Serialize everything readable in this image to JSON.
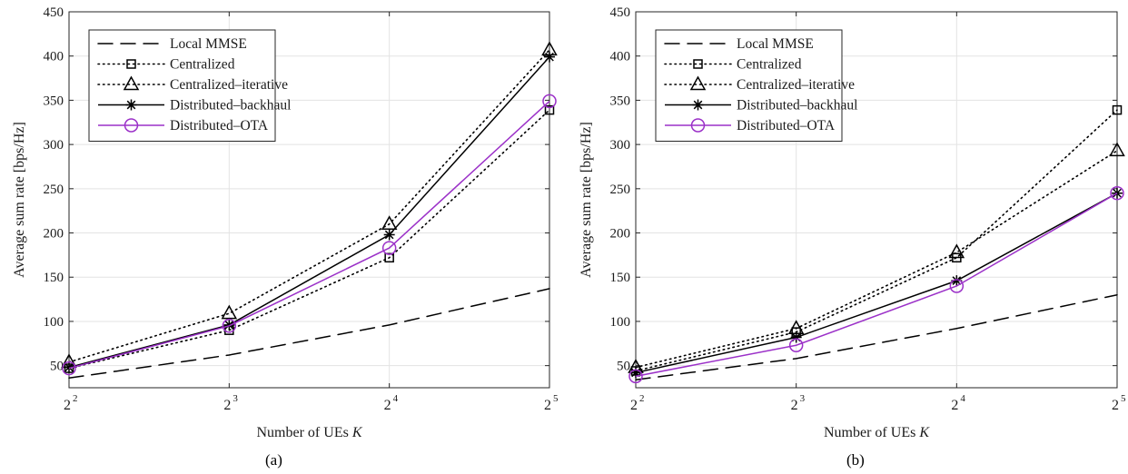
{
  "chart_data": [
    {
      "type": "line",
      "panel_label": "(a)",
      "xlabel": "Number of UEs K",
      "ylabel": "Average sum rate [bps/Hz]",
      "x_scale": "log2",
      "x": [
        4,
        8,
        16,
        32
      ],
      "x_tick_labels": [
        {
          "base": "2",
          "exp": "2"
        },
        {
          "base": "2",
          "exp": "3"
        },
        {
          "base": "2",
          "exp": "4"
        },
        {
          "base": "2",
          "exp": "5"
        }
      ],
      "ylim": [
        25,
        450
      ],
      "yticks": [
        50,
        100,
        150,
        200,
        250,
        300,
        350,
        400,
        450
      ],
      "grid": true,
      "legend_position": "top-left",
      "series": [
        {
          "name": "Local MMSE",
          "color": "#000000",
          "style": "dashed",
          "marker": "none",
          "values": [
            36,
            62,
            96,
            137
          ]
        },
        {
          "name": "Centralized",
          "color": "#000000",
          "style": "dotted",
          "marker": "square",
          "values": [
            47,
            90,
            172,
            339
          ]
        },
        {
          "name": "Centralized–iterative",
          "color": "#000000",
          "style": "dotted",
          "marker": "triangle",
          "values": [
            54,
            109,
            210,
            407
          ]
        },
        {
          "name": "Distributed–backhaul",
          "color": "#000000",
          "style": "solid",
          "marker": "asterisk",
          "values": [
            48,
            96,
            198,
            399
          ]
        },
        {
          "name": "Distributed–OTA",
          "color": "#9b30c8",
          "style": "solid",
          "marker": "circle",
          "values": [
            47,
            95,
            183,
            349
          ]
        }
      ]
    },
    {
      "type": "line",
      "panel_label": "(b)",
      "xlabel": "Number of UEs K",
      "ylabel": "Average sum rate [bps/Hz]",
      "x_scale": "log2",
      "x": [
        4,
        8,
        16,
        32
      ],
      "x_tick_labels": [
        {
          "base": "2",
          "exp": "2"
        },
        {
          "base": "2",
          "exp": "3"
        },
        {
          "base": "2",
          "exp": "4"
        },
        {
          "base": "2",
          "exp": "5"
        }
      ],
      "ylim": [
        25,
        450
      ],
      "yticks": [
        50,
        100,
        150,
        200,
        250,
        300,
        350,
        400,
        450
      ],
      "grid": true,
      "legend_position": "top-left",
      "series": [
        {
          "name": "Local MMSE",
          "color": "#000000",
          "style": "dashed",
          "marker": "none",
          "values": [
            34,
            58,
            92,
            130
          ]
        },
        {
          "name": "Centralized",
          "color": "#000000",
          "style": "dotted",
          "marker": "square",
          "values": [
            44,
            88,
            172,
            339
          ]
        },
        {
          "name": "Centralized–iterative",
          "color": "#000000",
          "style": "dotted",
          "marker": "triangle",
          "values": [
            48,
            92,
            178,
            293
          ]
        },
        {
          "name": "Distributed–backhaul",
          "color": "#000000",
          "style": "solid",
          "marker": "asterisk",
          "values": [
            42,
            82,
            146,
            245
          ]
        },
        {
          "name": "Distributed–OTA",
          "color": "#9b30c8",
          "style": "solid",
          "marker": "circle",
          "values": [
            38,
            73,
            140,
            245
          ]
        }
      ]
    }
  ]
}
